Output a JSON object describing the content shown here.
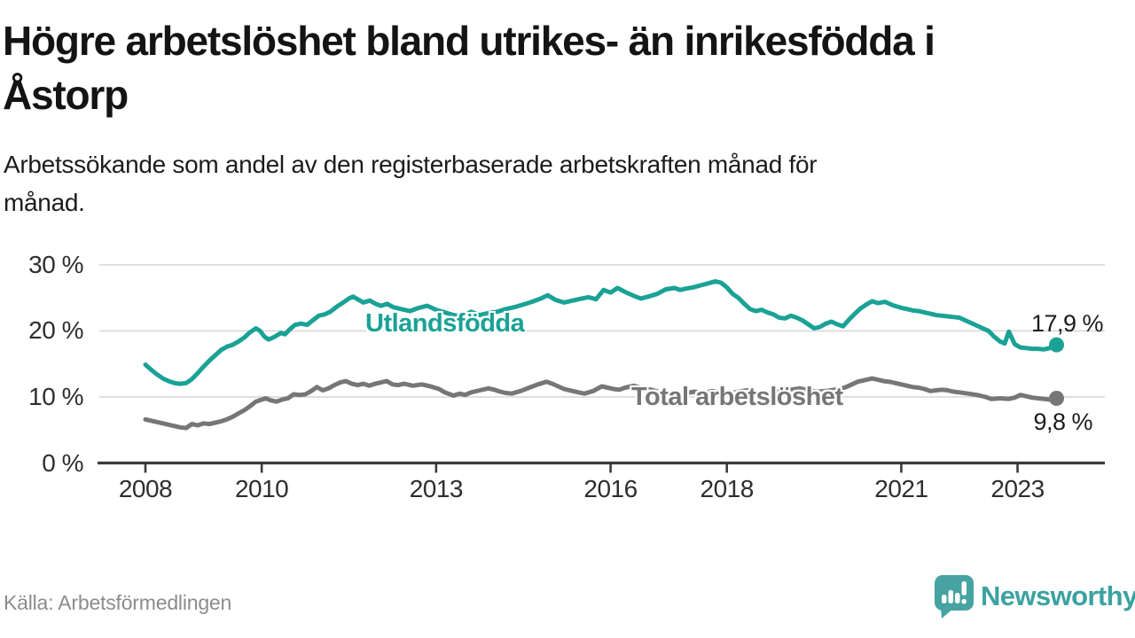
{
  "header": {
    "title_lines": [
      "Högre arbetslöshet bland utrikes- än inrikesfödda i",
      "Åstorp"
    ],
    "subtitle_lines": [
      "Arbetssökande som andel av den registerbaserade arbetskraften månad för",
      "månad."
    ]
  },
  "footer": {
    "source": "Källa: Arbetsförmedlingen",
    "brand": "Newsworthy",
    "brand_icon": "newsworthy-speech-bubble-bar-chart-icon",
    "brand_color": "#3ba2a0",
    "brand_icon_color": "#46a3a1"
  },
  "colors": {
    "background": "#ffffff",
    "title_text": "#141414",
    "axis_text": "#2e2e2e",
    "axis_line": "#3b3b3b",
    "gridline": "#d8d8d8",
    "source_text": "#8c8c8c",
    "series_foreign_born": "#1aa296",
    "series_total": "#767676"
  },
  "chart_data": {
    "type": "line",
    "title": "Högre arbetslöshet bland utrikes- än inrikesfödda i Åstorp",
    "subtitle": "Arbetssökande som andel av den registerbaserade arbetskraften månad för månad.",
    "source": "Källa: Arbetsförmedlingen",
    "xlabel": "",
    "ylabel": "",
    "unit": "percent",
    "xlim": [
      2007.2,
      2024.5
    ],
    "ylim": [
      0,
      30
    ],
    "grid": "horizontal",
    "legend": "inline-labels",
    "yticks": [
      {
        "value": 30,
        "label": "30 %"
      },
      {
        "value": 20,
        "label": "20 %"
      },
      {
        "value": 10,
        "label": "10 %"
      },
      {
        "value": 0,
        "label": "0 %"
      }
    ],
    "xticks": [
      {
        "value": 2008,
        "label": "2008"
      },
      {
        "value": 2010,
        "label": "2010"
      },
      {
        "value": 2013,
        "label": "2013"
      },
      {
        "value": 2016,
        "label": "2016"
      },
      {
        "value": 2018,
        "label": "2018"
      },
      {
        "value": 2021,
        "label": "2021"
      },
      {
        "value": 2023,
        "label": "2023"
      }
    ],
    "series": [
      {
        "name": "Utlandsfödda",
        "color": "#1aa296",
        "end_label": "17,9 %",
        "end_value": 17.9,
        "points": [
          [
            2008.0,
            14.9
          ],
          [
            2008.1,
            14.1
          ],
          [
            2008.2,
            13.4
          ],
          [
            2008.3,
            12.8
          ],
          [
            2008.4,
            12.4
          ],
          [
            2008.5,
            12.1
          ],
          [
            2008.6,
            12.0
          ],
          [
            2008.7,
            12.1
          ],
          [
            2008.8,
            12.7
          ],
          [
            2008.9,
            13.6
          ],
          [
            2009.0,
            14.6
          ],
          [
            2009.1,
            15.5
          ],
          [
            2009.2,
            16.3
          ],
          [
            2009.3,
            17.1
          ],
          [
            2009.4,
            17.6
          ],
          [
            2009.5,
            17.9
          ],
          [
            2009.6,
            18.4
          ],
          [
            2009.7,
            19.0
          ],
          [
            2009.8,
            19.8
          ],
          [
            2009.9,
            20.4
          ],
          [
            2009.97,
            20.0
          ],
          [
            2010.05,
            19.1
          ],
          [
            2010.12,
            18.7
          ],
          [
            2010.22,
            19.1
          ],
          [
            2010.33,
            19.7
          ],
          [
            2010.4,
            19.5
          ],
          [
            2010.48,
            20.2
          ],
          [
            2010.57,
            20.9
          ],
          [
            2010.68,
            21.1
          ],
          [
            2010.78,
            20.9
          ],
          [
            2010.88,
            21.6
          ],
          [
            2010.98,
            22.3
          ],
          [
            2011.08,
            22.5
          ],
          [
            2011.18,
            22.9
          ],
          [
            2011.28,
            23.6
          ],
          [
            2011.4,
            24.3
          ],
          [
            2011.5,
            24.9
          ],
          [
            2011.57,
            25.2
          ],
          [
            2011.65,
            24.8
          ],
          [
            2011.75,
            24.3
          ],
          [
            2011.86,
            24.6
          ],
          [
            2011.96,
            24.1
          ],
          [
            2012.05,
            23.8
          ],
          [
            2012.16,
            24.1
          ],
          [
            2012.26,
            23.6
          ],
          [
            2012.4,
            23.3
          ],
          [
            2012.55,
            23.0
          ],
          [
            2012.7,
            23.5
          ],
          [
            2012.85,
            23.8
          ],
          [
            2013.0,
            23.2
          ],
          [
            2013.15,
            22.8
          ],
          [
            2013.3,
            22.4
          ],
          [
            2013.45,
            22.2
          ],
          [
            2013.6,
            22.9
          ],
          [
            2013.75,
            22.4
          ],
          [
            2013.9,
            22.7
          ],
          [
            2014.05,
            22.9
          ],
          [
            2014.2,
            23.3
          ],
          [
            2014.35,
            23.6
          ],
          [
            2014.5,
            24.0
          ],
          [
            2014.65,
            24.4
          ],
          [
            2014.8,
            24.9
          ],
          [
            2014.92,
            25.4
          ],
          [
            2015.05,
            24.7
          ],
          [
            2015.2,
            24.3
          ],
          [
            2015.35,
            24.6
          ],
          [
            2015.5,
            24.9
          ],
          [
            2015.62,
            25.1
          ],
          [
            2015.75,
            24.8
          ],
          [
            2015.88,
            26.2
          ],
          [
            2016.0,
            25.8
          ],
          [
            2016.12,
            26.5
          ],
          [
            2016.25,
            25.9
          ],
          [
            2016.4,
            25.3
          ],
          [
            2016.52,
            24.9
          ],
          [
            2016.65,
            25.2
          ],
          [
            2016.8,
            25.6
          ],
          [
            2016.95,
            26.3
          ],
          [
            2017.1,
            26.5
          ],
          [
            2017.2,
            26.2
          ],
          [
            2017.3,
            26.4
          ],
          [
            2017.42,
            26.6
          ],
          [
            2017.55,
            26.9
          ],
          [
            2017.68,
            27.2
          ],
          [
            2017.8,
            27.5
          ],
          [
            2017.9,
            27.3
          ],
          [
            2018.0,
            26.6
          ],
          [
            2018.1,
            25.6
          ],
          [
            2018.2,
            25.0
          ],
          [
            2018.3,
            24.1
          ],
          [
            2018.4,
            23.3
          ],
          [
            2018.5,
            23.0
          ],
          [
            2018.6,
            23.2
          ],
          [
            2018.7,
            22.8
          ],
          [
            2018.8,
            22.5
          ],
          [
            2018.9,
            22.0
          ],
          [
            2019.0,
            21.9
          ],
          [
            2019.1,
            22.3
          ],
          [
            2019.2,
            22.0
          ],
          [
            2019.3,
            21.6
          ],
          [
            2019.4,
            21.0
          ],
          [
            2019.5,
            20.4
          ],
          [
            2019.6,
            20.6
          ],
          [
            2019.7,
            21.1
          ],
          [
            2019.8,
            21.4
          ],
          [
            2019.9,
            21.0
          ],
          [
            2020.0,
            20.7
          ],
          [
            2020.1,
            21.7
          ],
          [
            2020.2,
            22.6
          ],
          [
            2020.3,
            23.4
          ],
          [
            2020.4,
            24.0
          ],
          [
            2020.5,
            24.5
          ],
          [
            2020.6,
            24.2
          ],
          [
            2020.72,
            24.4
          ],
          [
            2020.85,
            23.9
          ],
          [
            2021.0,
            23.5
          ],
          [
            2021.1,
            23.3
          ],
          [
            2021.2,
            23.1
          ],
          [
            2021.3,
            23.0
          ],
          [
            2021.4,
            22.8
          ],
          [
            2021.5,
            22.6
          ],
          [
            2021.6,
            22.4
          ],
          [
            2021.7,
            22.3
          ],
          [
            2021.8,
            22.2
          ],
          [
            2021.9,
            22.1
          ],
          [
            2022.0,
            22.0
          ],
          [
            2022.1,
            21.6
          ],
          [
            2022.2,
            21.2
          ],
          [
            2022.3,
            20.8
          ],
          [
            2022.4,
            20.4
          ],
          [
            2022.5,
            20.0
          ],
          [
            2022.6,
            19.1
          ],
          [
            2022.7,
            18.4
          ],
          [
            2022.78,
            18.1
          ],
          [
            2022.85,
            19.9
          ],
          [
            2022.95,
            18.0
          ],
          [
            2023.05,
            17.5
          ],
          [
            2023.15,
            17.4
          ],
          [
            2023.25,
            17.3
          ],
          [
            2023.35,
            17.3
          ],
          [
            2023.45,
            17.2
          ],
          [
            2023.55,
            17.4
          ],
          [
            2023.67,
            17.9
          ]
        ]
      },
      {
        "name": "Total arbetslöshet",
        "color": "#767676",
        "end_label": "9,8 %",
        "end_value": 9.8,
        "points": [
          [
            2008.0,
            6.6
          ],
          [
            2008.1,
            6.4
          ],
          [
            2008.2,
            6.2
          ],
          [
            2008.3,
            6.0
          ],
          [
            2008.4,
            5.8
          ],
          [
            2008.5,
            5.6
          ],
          [
            2008.6,
            5.4
          ],
          [
            2008.7,
            5.3
          ],
          [
            2008.8,
            5.9
          ],
          [
            2008.9,
            5.7
          ],
          [
            2009.0,
            6.0
          ],
          [
            2009.1,
            5.9
          ],
          [
            2009.2,
            6.1
          ],
          [
            2009.3,
            6.3
          ],
          [
            2009.4,
            6.6
          ],
          [
            2009.5,
            7.0
          ],
          [
            2009.6,
            7.5
          ],
          [
            2009.7,
            8.0
          ],
          [
            2009.8,
            8.6
          ],
          [
            2009.9,
            9.3
          ],
          [
            2010.0,
            9.6
          ],
          [
            2010.07,
            9.8
          ],
          [
            2010.15,
            9.5
          ],
          [
            2010.25,
            9.3
          ],
          [
            2010.35,
            9.6
          ],
          [
            2010.45,
            9.8
          ],
          [
            2010.55,
            10.4
          ],
          [
            2010.65,
            10.3
          ],
          [
            2010.75,
            10.4
          ],
          [
            2010.85,
            10.9
          ],
          [
            2010.95,
            11.5
          ],
          [
            2011.05,
            11.0
          ],
          [
            2011.15,
            11.3
          ],
          [
            2011.25,
            11.8
          ],
          [
            2011.35,
            12.2
          ],
          [
            2011.45,
            12.4
          ],
          [
            2011.55,
            12.0
          ],
          [
            2011.65,
            11.8
          ],
          [
            2011.75,
            12.0
          ],
          [
            2011.85,
            11.7
          ],
          [
            2011.95,
            12.0
          ],
          [
            2012.05,
            12.2
          ],
          [
            2012.15,
            12.4
          ],
          [
            2012.25,
            11.9
          ],
          [
            2012.35,
            11.8
          ],
          [
            2012.45,
            12.0
          ],
          [
            2012.6,
            11.7
          ],
          [
            2012.75,
            11.9
          ],
          [
            2012.9,
            11.6
          ],
          [
            2013.05,
            11.2
          ],
          [
            2013.15,
            10.7
          ],
          [
            2013.3,
            10.2
          ],
          [
            2013.4,
            10.5
          ],
          [
            2013.5,
            10.3
          ],
          [
            2013.6,
            10.7
          ],
          [
            2013.75,
            11.0
          ],
          [
            2013.9,
            11.3
          ],
          [
            2014.0,
            11.1
          ],
          [
            2014.1,
            10.8
          ],
          [
            2014.2,
            10.6
          ],
          [
            2014.3,
            10.5
          ],
          [
            2014.45,
            10.9
          ],
          [
            2014.6,
            11.4
          ],
          [
            2014.75,
            11.9
          ],
          [
            2014.9,
            12.3
          ],
          [
            2015.0,
            12.0
          ],
          [
            2015.1,
            11.6
          ],
          [
            2015.2,
            11.2
          ],
          [
            2015.35,
            10.9
          ],
          [
            2015.45,
            10.7
          ],
          [
            2015.55,
            10.5
          ],
          [
            2015.7,
            10.9
          ],
          [
            2015.85,
            11.6
          ],
          [
            2015.95,
            11.4
          ],
          [
            2016.05,
            11.2
          ],
          [
            2016.15,
            11.1
          ],
          [
            2016.25,
            11.4
          ],
          [
            2016.4,
            11.7
          ],
          [
            2016.55,
            11.3
          ],
          [
            2016.7,
            11.1
          ],
          [
            2016.85,
            10.7
          ],
          [
            2017.0,
            10.5
          ],
          [
            2017.15,
            10.4
          ],
          [
            2017.3,
            10.6
          ],
          [
            2017.45,
            10.8
          ],
          [
            2017.6,
            10.6
          ],
          [
            2017.75,
            10.9
          ],
          [
            2017.9,
            10.7
          ],
          [
            2018.05,
            10.5
          ],
          [
            2018.2,
            10.8
          ],
          [
            2018.35,
            11.0
          ],
          [
            2018.5,
            10.7
          ],
          [
            2018.65,
            10.5
          ],
          [
            2018.8,
            10.7
          ],
          [
            2018.95,
            10.9
          ],
          [
            2019.1,
            11.1
          ],
          [
            2019.25,
            11.3
          ],
          [
            2019.4,
            11.0
          ],
          [
            2019.55,
            10.8
          ],
          [
            2019.7,
            10.9
          ],
          [
            2019.85,
            11.1
          ],
          [
            2019.95,
            11.2
          ],
          [
            2020.05,
            11.5
          ],
          [
            2020.15,
            11.9
          ],
          [
            2020.25,
            12.3
          ],
          [
            2020.35,
            12.5
          ],
          [
            2020.5,
            12.8
          ],
          [
            2020.6,
            12.6
          ],
          [
            2020.7,
            12.4
          ],
          [
            2020.8,
            12.3
          ],
          [
            2020.9,
            12.1
          ],
          [
            2021.0,
            11.9
          ],
          [
            2021.1,
            11.7
          ],
          [
            2021.2,
            11.5
          ],
          [
            2021.3,
            11.4
          ],
          [
            2021.4,
            11.2
          ],
          [
            2021.5,
            10.9
          ],
          [
            2021.6,
            11.0
          ],
          [
            2021.7,
            11.1
          ],
          [
            2021.8,
            11.0
          ],
          [
            2021.9,
            10.8
          ],
          [
            2022.0,
            10.7
          ],
          [
            2022.15,
            10.5
          ],
          [
            2022.3,
            10.3
          ],
          [
            2022.45,
            10.0
          ],
          [
            2022.55,
            9.7
          ],
          [
            2022.7,
            9.8
          ],
          [
            2022.85,
            9.7
          ],
          [
            2022.95,
            9.9
          ],
          [
            2023.05,
            10.3
          ],
          [
            2023.15,
            10.1
          ],
          [
            2023.25,
            9.9
          ],
          [
            2023.35,
            9.8
          ],
          [
            2023.45,
            9.7
          ],
          [
            2023.55,
            9.6
          ],
          [
            2023.67,
            9.8
          ]
        ]
      }
    ]
  }
}
